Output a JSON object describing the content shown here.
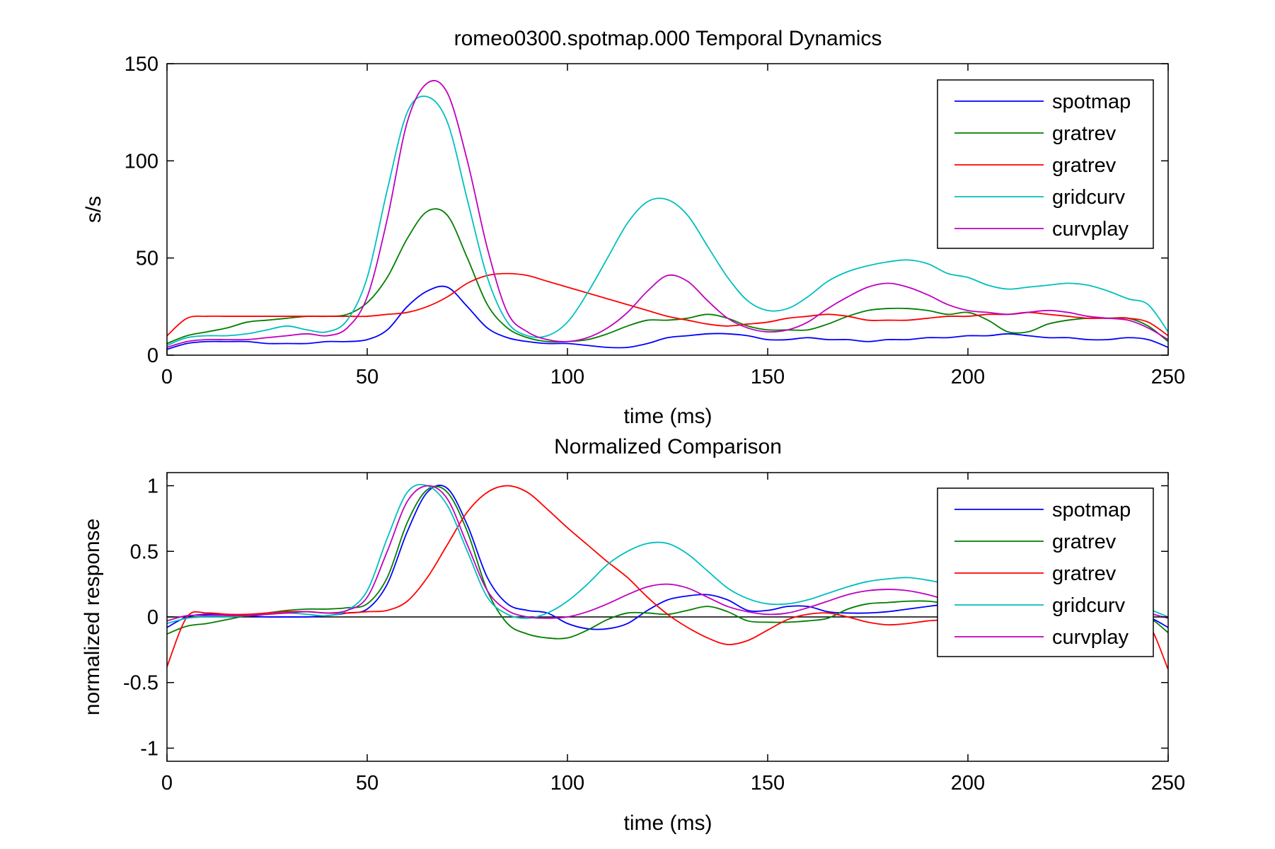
{
  "chart_data": [
    {
      "type": "line",
      "title": "romeo0300.spotmap.000 Temporal Dynamics",
      "xlabel": "time (ms)",
      "ylabel": "s/s",
      "xlim": [
        0,
        250
      ],
      "ylim": [
        0,
        150
      ],
      "xticks": [
        "0",
        "50",
        "100",
        "150",
        "200",
        "250"
      ],
      "yticks": [
        "0",
        "50",
        "100",
        "150"
      ],
      "grid": false,
      "legend_position": "top-right",
      "x": [
        0,
        5,
        10,
        15,
        20,
        25,
        30,
        35,
        40,
        45,
        50,
        55,
        60,
        65,
        70,
        75,
        80,
        85,
        90,
        95,
        100,
        105,
        110,
        115,
        120,
        125,
        130,
        135,
        140,
        145,
        150,
        155,
        160,
        165,
        170,
        175,
        180,
        185,
        190,
        195,
        200,
        205,
        210,
        215,
        220,
        225,
        230,
        235,
        240,
        245,
        250
      ],
      "series": [
        {
          "name": "spotmap",
          "color": "#0000ff",
          "values": [
            3,
            6,
            7,
            7,
            7,
            6,
            6,
            6,
            7,
            7,
            8,
            13,
            25,
            33,
            35,
            25,
            14,
            9,
            7,
            6,
            6,
            5,
            4,
            4,
            6,
            9,
            10,
            11,
            11,
            10,
            8,
            8,
            9,
            8,
            8,
            7,
            8,
            8,
            9,
            9,
            10,
            10,
            11,
            10,
            9,
            9,
            8,
            8,
            9,
            8,
            4
          ]
        },
        {
          "name": "gratrev",
          "color": "#007f00",
          "values": [
            6,
            10,
            12,
            14,
            17,
            18,
            19,
            20,
            20,
            21,
            27,
            40,
            60,
            74,
            72,
            50,
            26,
            14,
            9,
            7,
            7,
            8,
            11,
            15,
            18,
            18,
            19,
            21,
            19,
            15,
            13,
            13,
            13,
            16,
            20,
            23,
            24,
            24,
            23,
            21,
            22,
            18,
            12,
            12,
            16,
            18,
            19,
            19,
            19,
            15,
            7
          ]
        },
        {
          "name": "gratrev",
          "color": "#ff0000",
          "values": [
            10,
            19,
            20,
            20,
            20,
            20,
            20,
            20,
            20,
            20,
            20,
            21,
            22,
            25,
            30,
            37,
            41,
            42,
            41,
            38,
            35,
            32,
            29,
            26,
            23,
            20,
            18,
            16,
            15,
            16,
            17,
            19,
            20,
            21,
            20,
            18,
            18,
            18,
            19,
            20,
            20,
            21,
            21,
            22,
            21,
            20,
            19,
            19,
            19,
            17,
            10
          ]
        },
        {
          "name": "gridcurv",
          "color": "#00bfbf",
          "values": [
            5,
            9,
            10,
            10,
            11,
            13,
            15,
            13,
            12,
            18,
            40,
            85,
            125,
            133,
            120,
            80,
            40,
            17,
            10,
            10,
            17,
            32,
            50,
            68,
            79,
            80,
            72,
            56,
            40,
            28,
            23,
            24,
            30,
            38,
            43,
            46,
            48,
            49,
            47,
            42,
            40,
            36,
            34,
            35,
            36,
            37,
            36,
            33,
            29,
            26,
            12
          ]
        },
        {
          "name": "curvplay",
          "color": "#bf00bf",
          "values": [
            4,
            7,
            8,
            8,
            8,
            9,
            10,
            11,
            10,
            14,
            30,
            70,
            120,
            140,
            135,
            100,
            55,
            22,
            12,
            8,
            7,
            9,
            14,
            22,
            33,
            41,
            38,
            28,
            19,
            14,
            12,
            13,
            17,
            24,
            30,
            35,
            37,
            35,
            31,
            26,
            23,
            22,
            21,
            22,
            23,
            22,
            20,
            19,
            18,
            14,
            8
          ]
        }
      ]
    },
    {
      "type": "line",
      "title": "Normalized Comparison",
      "xlabel": "time (ms)",
      "ylabel": "normalized response",
      "xlim": [
        0,
        250
      ],
      "ylim": [
        -1.1,
        1.1
      ],
      "xticks": [
        "0",
        "50",
        "100",
        "150",
        "200",
        "250"
      ],
      "yticks": [
        "-1",
        "-0.5",
        "0",
        "0.5",
        "1"
      ],
      "grid": false,
      "legend_position": "top-right",
      "zero_line": true,
      "x": [
        0,
        5,
        10,
        15,
        20,
        25,
        30,
        35,
        40,
        45,
        50,
        55,
        60,
        65,
        70,
        75,
        80,
        85,
        90,
        95,
        100,
        105,
        110,
        115,
        120,
        125,
        130,
        135,
        140,
        145,
        150,
        155,
        160,
        165,
        170,
        175,
        180,
        185,
        190,
        195,
        200,
        205,
        210,
        215,
        220,
        225,
        230,
        235,
        240,
        245,
        250
      ],
      "series": [
        {
          "name": "spotmap",
          "color": "#0000ff",
          "values": [
            -0.08,
            0.0,
            0.02,
            0.02,
            0.01,
            0.0,
            0.0,
            0.0,
            0.01,
            0.03,
            0.06,
            0.25,
            0.65,
            0.95,
            0.98,
            0.7,
            0.3,
            0.1,
            0.05,
            0.03,
            -0.05,
            -0.09,
            -0.09,
            -0.05,
            0.05,
            0.13,
            0.16,
            0.17,
            0.13,
            0.05,
            0.05,
            0.08,
            0.08,
            0.04,
            0.03,
            0.03,
            0.04,
            0.06,
            0.08,
            0.1,
            0.12,
            0.13,
            0.13,
            0.12,
            0.1,
            0.08,
            0.06,
            0.04,
            0.02,
            0.0,
            -0.08
          ]
        },
        {
          "name": "gratrev",
          "color": "#007f00",
          "values": [
            -0.13,
            -0.07,
            -0.05,
            -0.02,
            0.01,
            0.03,
            0.05,
            0.06,
            0.06,
            0.07,
            0.1,
            0.3,
            0.72,
            0.97,
            0.95,
            0.65,
            0.2,
            -0.05,
            -0.13,
            -0.16,
            -0.16,
            -0.1,
            -0.02,
            0.03,
            0.03,
            0.02,
            0.05,
            0.08,
            0.04,
            -0.03,
            -0.04,
            -0.04,
            -0.03,
            -0.01,
            0.06,
            0.1,
            0.11,
            0.12,
            0.12,
            0.1,
            0.08,
            0.05,
            0.03,
            0.02,
            0.03,
            0.05,
            0.06,
            0.05,
            0.03,
            0.0,
            -0.12
          ]
        },
        {
          "name": "gratrev",
          "color": "#ff0000",
          "values": [
            -0.38,
            0.0,
            0.03,
            0.02,
            0.02,
            0.03,
            0.04,
            0.04,
            0.03,
            0.03,
            0.04,
            0.05,
            0.12,
            0.3,
            0.55,
            0.8,
            0.95,
            1.0,
            0.95,
            0.82,
            0.68,
            0.55,
            0.42,
            0.3,
            0.15,
            0.02,
            -0.08,
            -0.16,
            -0.21,
            -0.18,
            -0.1,
            -0.02,
            0.02,
            0.03,
            0.0,
            -0.04,
            -0.06,
            -0.05,
            -0.03,
            -0.02,
            0.0,
            0.01,
            0.02,
            0.03,
            0.02,
            0.01,
            0.0,
            -0.01,
            -0.02,
            -0.05,
            -0.4
          ]
        },
        {
          "name": "gridcurv",
          "color": "#00bfbf",
          "values": [
            -0.05,
            -0.01,
            0.0,
            0.0,
            0.01,
            0.02,
            0.03,
            0.02,
            0.01,
            0.05,
            0.2,
            0.6,
            0.95,
            1.0,
            0.85,
            0.5,
            0.15,
            0.02,
            -0.01,
            0.03,
            0.12,
            0.25,
            0.4,
            0.5,
            0.56,
            0.56,
            0.48,
            0.35,
            0.22,
            0.14,
            0.1,
            0.1,
            0.13,
            0.18,
            0.23,
            0.27,
            0.29,
            0.3,
            0.28,
            0.25,
            0.22,
            0.2,
            0.18,
            0.17,
            0.17,
            0.18,
            0.17,
            0.15,
            0.1,
            0.06,
            0.0
          ]
        },
        {
          "name": "curvplay",
          "color": "#bf00bf",
          "values": [
            -0.03,
            0.01,
            0.01,
            0.01,
            0.01,
            0.02,
            0.03,
            0.04,
            0.03,
            0.05,
            0.15,
            0.5,
            0.88,
            1.0,
            0.9,
            0.55,
            0.2,
            0.05,
            0.0,
            -0.01,
            0.0,
            0.04,
            0.1,
            0.17,
            0.23,
            0.25,
            0.22,
            0.15,
            0.08,
            0.04,
            0.02,
            0.03,
            0.07,
            0.12,
            0.17,
            0.2,
            0.21,
            0.2,
            0.17,
            0.13,
            0.11,
            0.1,
            0.09,
            0.09,
            0.1,
            0.1,
            0.09,
            0.08,
            0.06,
            0.03,
            -0.01
          ]
        }
      ]
    }
  ]
}
